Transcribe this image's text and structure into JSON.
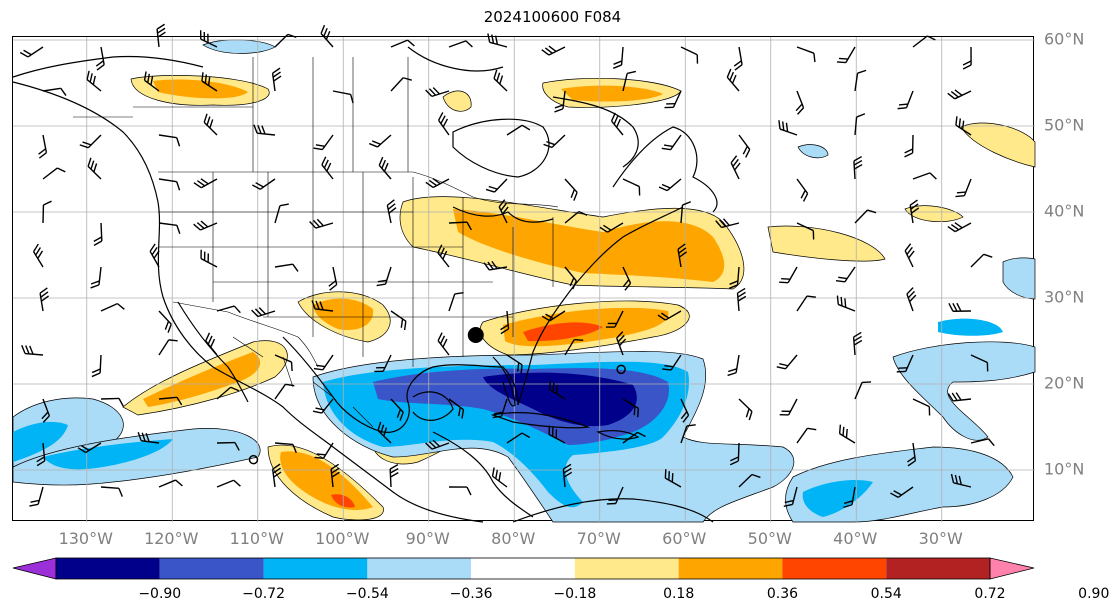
{
  "title": "2024100600 F084",
  "lon_labels": [
    "130°W",
    "120°W",
    "110°W",
    "100°W",
    "90°W",
    "80°W",
    "70°W",
    "60°W",
    "50°W",
    "40°W",
    "30°W"
  ],
  "lat_labels": [
    "60°N",
    "50°N",
    "40°N",
    "30°N",
    "20°N",
    "10°N"
  ],
  "colorbar": {
    "levels": [
      "−0.90",
      "−0.72",
      "−0.54",
      "−0.36",
      "−0.18",
      "0.18",
      "0.36",
      "0.54",
      "0.72",
      "0.90"
    ],
    "colors": [
      "#9b30d9",
      "#00008b",
      "#3a55c8",
      "#00b4f5",
      "#aadcf8",
      "#ffffff",
      "#ffe98a",
      "#ffa500",
      "#ff4500",
      "#b22222",
      "#ff82ad"
    ]
  },
  "markers": [
    {
      "name": "storm-center",
      "lon": -84.5,
      "lat": 25.7,
      "style": "filled"
    },
    {
      "name": "open-circle-east",
      "lon": -67.5,
      "lat": 21.7,
      "style": "open"
    },
    {
      "name": "open-circle-west",
      "lon": -110.5,
      "lat": 11.2,
      "style": "open"
    }
  ]
}
